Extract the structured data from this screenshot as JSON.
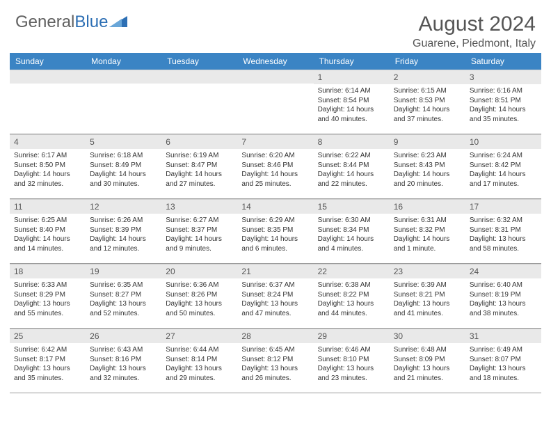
{
  "logo": {
    "text1": "General",
    "text2": "Blue"
  },
  "header": {
    "month_title": "August 2024",
    "location": "Guarene, Piedmont, Italy"
  },
  "colors": {
    "header_bg": "#3b84c4",
    "header_text": "#ffffff",
    "daynum_bg": "#e9e9e9",
    "title_text": "#555555"
  },
  "weekdays": [
    "Sunday",
    "Monday",
    "Tuesday",
    "Wednesday",
    "Thursday",
    "Friday",
    "Saturday"
  ],
  "weeks": [
    [
      {
        "num": "",
        "sunrise": "",
        "sunset": "",
        "daylight": ""
      },
      {
        "num": "",
        "sunrise": "",
        "sunset": "",
        "daylight": ""
      },
      {
        "num": "",
        "sunrise": "",
        "sunset": "",
        "daylight": ""
      },
      {
        "num": "",
        "sunrise": "",
        "sunset": "",
        "daylight": ""
      },
      {
        "num": "1",
        "sunrise": "Sunrise: 6:14 AM",
        "sunset": "Sunset: 8:54 PM",
        "daylight": "Daylight: 14 hours and 40 minutes."
      },
      {
        "num": "2",
        "sunrise": "Sunrise: 6:15 AM",
        "sunset": "Sunset: 8:53 PM",
        "daylight": "Daylight: 14 hours and 37 minutes."
      },
      {
        "num": "3",
        "sunrise": "Sunrise: 6:16 AM",
        "sunset": "Sunset: 8:51 PM",
        "daylight": "Daylight: 14 hours and 35 minutes."
      }
    ],
    [
      {
        "num": "4",
        "sunrise": "Sunrise: 6:17 AM",
        "sunset": "Sunset: 8:50 PM",
        "daylight": "Daylight: 14 hours and 32 minutes."
      },
      {
        "num": "5",
        "sunrise": "Sunrise: 6:18 AM",
        "sunset": "Sunset: 8:49 PM",
        "daylight": "Daylight: 14 hours and 30 minutes."
      },
      {
        "num": "6",
        "sunrise": "Sunrise: 6:19 AM",
        "sunset": "Sunset: 8:47 PM",
        "daylight": "Daylight: 14 hours and 27 minutes."
      },
      {
        "num": "7",
        "sunrise": "Sunrise: 6:20 AM",
        "sunset": "Sunset: 8:46 PM",
        "daylight": "Daylight: 14 hours and 25 minutes."
      },
      {
        "num": "8",
        "sunrise": "Sunrise: 6:22 AM",
        "sunset": "Sunset: 8:44 PM",
        "daylight": "Daylight: 14 hours and 22 minutes."
      },
      {
        "num": "9",
        "sunrise": "Sunrise: 6:23 AM",
        "sunset": "Sunset: 8:43 PM",
        "daylight": "Daylight: 14 hours and 20 minutes."
      },
      {
        "num": "10",
        "sunrise": "Sunrise: 6:24 AM",
        "sunset": "Sunset: 8:42 PM",
        "daylight": "Daylight: 14 hours and 17 minutes."
      }
    ],
    [
      {
        "num": "11",
        "sunrise": "Sunrise: 6:25 AM",
        "sunset": "Sunset: 8:40 PM",
        "daylight": "Daylight: 14 hours and 14 minutes."
      },
      {
        "num": "12",
        "sunrise": "Sunrise: 6:26 AM",
        "sunset": "Sunset: 8:39 PM",
        "daylight": "Daylight: 14 hours and 12 minutes."
      },
      {
        "num": "13",
        "sunrise": "Sunrise: 6:27 AM",
        "sunset": "Sunset: 8:37 PM",
        "daylight": "Daylight: 14 hours and 9 minutes."
      },
      {
        "num": "14",
        "sunrise": "Sunrise: 6:29 AM",
        "sunset": "Sunset: 8:35 PM",
        "daylight": "Daylight: 14 hours and 6 minutes."
      },
      {
        "num": "15",
        "sunrise": "Sunrise: 6:30 AM",
        "sunset": "Sunset: 8:34 PM",
        "daylight": "Daylight: 14 hours and 4 minutes."
      },
      {
        "num": "16",
        "sunrise": "Sunrise: 6:31 AM",
        "sunset": "Sunset: 8:32 PM",
        "daylight": "Daylight: 14 hours and 1 minute."
      },
      {
        "num": "17",
        "sunrise": "Sunrise: 6:32 AM",
        "sunset": "Sunset: 8:31 PM",
        "daylight": "Daylight: 13 hours and 58 minutes."
      }
    ],
    [
      {
        "num": "18",
        "sunrise": "Sunrise: 6:33 AM",
        "sunset": "Sunset: 8:29 PM",
        "daylight": "Daylight: 13 hours and 55 minutes."
      },
      {
        "num": "19",
        "sunrise": "Sunrise: 6:35 AM",
        "sunset": "Sunset: 8:27 PM",
        "daylight": "Daylight: 13 hours and 52 minutes."
      },
      {
        "num": "20",
        "sunrise": "Sunrise: 6:36 AM",
        "sunset": "Sunset: 8:26 PM",
        "daylight": "Daylight: 13 hours and 50 minutes."
      },
      {
        "num": "21",
        "sunrise": "Sunrise: 6:37 AM",
        "sunset": "Sunset: 8:24 PM",
        "daylight": "Daylight: 13 hours and 47 minutes."
      },
      {
        "num": "22",
        "sunrise": "Sunrise: 6:38 AM",
        "sunset": "Sunset: 8:22 PM",
        "daylight": "Daylight: 13 hours and 44 minutes."
      },
      {
        "num": "23",
        "sunrise": "Sunrise: 6:39 AM",
        "sunset": "Sunset: 8:21 PM",
        "daylight": "Daylight: 13 hours and 41 minutes."
      },
      {
        "num": "24",
        "sunrise": "Sunrise: 6:40 AM",
        "sunset": "Sunset: 8:19 PM",
        "daylight": "Daylight: 13 hours and 38 minutes."
      }
    ],
    [
      {
        "num": "25",
        "sunrise": "Sunrise: 6:42 AM",
        "sunset": "Sunset: 8:17 PM",
        "daylight": "Daylight: 13 hours and 35 minutes."
      },
      {
        "num": "26",
        "sunrise": "Sunrise: 6:43 AM",
        "sunset": "Sunset: 8:16 PM",
        "daylight": "Daylight: 13 hours and 32 minutes."
      },
      {
        "num": "27",
        "sunrise": "Sunrise: 6:44 AM",
        "sunset": "Sunset: 8:14 PM",
        "daylight": "Daylight: 13 hours and 29 minutes."
      },
      {
        "num": "28",
        "sunrise": "Sunrise: 6:45 AM",
        "sunset": "Sunset: 8:12 PM",
        "daylight": "Daylight: 13 hours and 26 minutes."
      },
      {
        "num": "29",
        "sunrise": "Sunrise: 6:46 AM",
        "sunset": "Sunset: 8:10 PM",
        "daylight": "Daylight: 13 hours and 23 minutes."
      },
      {
        "num": "30",
        "sunrise": "Sunrise: 6:48 AM",
        "sunset": "Sunset: 8:09 PM",
        "daylight": "Daylight: 13 hours and 21 minutes."
      },
      {
        "num": "31",
        "sunrise": "Sunrise: 6:49 AM",
        "sunset": "Sunset: 8:07 PM",
        "daylight": "Daylight: 13 hours and 18 minutes."
      }
    ]
  ]
}
